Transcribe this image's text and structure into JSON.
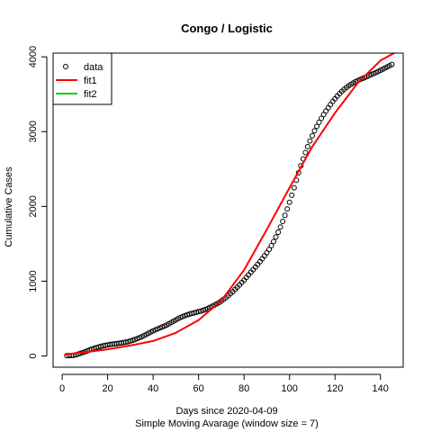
{
  "chart_data": {
    "type": "scatter",
    "title": "Congo / Logistic",
    "xlabel": "Days since 2020-04-09",
    "subtitle": "Simple Moving Avarage (window size = 7)",
    "ylabel": "Cumulative Cases",
    "xlim": [
      -4,
      150
    ],
    "ylim": [
      -150,
      4050
    ],
    "xticks": [
      0,
      20,
      40,
      60,
      80,
      100,
      120,
      140
    ],
    "yticks": [
      0,
      1000,
      2000,
      3000,
      4000
    ],
    "grid": false,
    "legend_position": "top-left",
    "legend": [
      {
        "name": "data",
        "marker": "open-circle",
        "color": "#000000"
      },
      {
        "name": "fit1",
        "marker": "line",
        "color": "#ff0000"
      },
      {
        "name": "fit2",
        "marker": "line",
        "color": "#00cd00"
      }
    ],
    "data_series": {
      "name": "data",
      "points": [
        [
          2,
          5
        ],
        [
          3,
          5
        ],
        [
          4,
          6
        ],
        [
          5,
          8
        ],
        [
          6,
          15
        ],
        [
          7,
          25
        ],
        [
          8,
          35
        ],
        [
          9,
          45
        ],
        [
          10,
          55
        ],
        [
          11,
          68
        ],
        [
          12,
          80
        ],
        [
          13,
          92
        ],
        [
          14,
          102
        ],
        [
          15,
          112
        ],
        [
          16,
          120
        ],
        [
          17,
          128
        ],
        [
          18,
          135
        ],
        [
          19,
          142
        ],
        [
          20,
          148
        ],
        [
          21,
          153
        ],
        [
          22,
          158
        ],
        [
          23,
          162
        ],
        [
          24,
          166
        ],
        [
          25,
          170
        ],
        [
          26,
          175
        ],
        [
          27,
          180
        ],
        [
          28,
          186
        ],
        [
          29,
          192
        ],
        [
          30,
          200
        ],
        [
          31,
          210
        ],
        [
          32,
          220
        ],
        [
          33,
          232
        ],
        [
          34,
          245
        ],
        [
          35,
          258
        ],
        [
          36,
          272
        ],
        [
          37,
          288
        ],
        [
          38,
          305
        ],
        [
          39,
          320
        ],
        [
          40,
          335
        ],
        [
          41,
          350
        ],
        [
          42,
          362
        ],
        [
          43,
          375
        ],
        [
          44,
          388
        ],
        [
          45,
          400
        ],
        [
          46,
          415
        ],
        [
          47,
          430
        ],
        [
          48,
          448
        ],
        [
          49,
          465
        ],
        [
          50,
          482
        ],
        [
          51,
          500
        ],
        [
          52,
          515
        ],
        [
          53,
          528
        ],
        [
          54,
          540
        ],
        [
          55,
          550
        ],
        [
          56,
          560
        ],
        [
          57,
          568
        ],
        [
          58,
          576
        ],
        [
          59,
          584
        ],
        [
          60,
          592
        ],
        [
          61,
          600
        ],
        [
          62,
          610
        ],
        [
          63,
          622
        ],
        [
          64,
          636
        ],
        [
          65,
          650
        ],
        [
          66,
          665
        ],
        [
          67,
          680
        ],
        [
          68,
          697
        ],
        [
          69,
          715
        ],
        [
          70,
          735
        ],
        [
          71,
          757
        ],
        [
          72,
          780
        ],
        [
          73,
          805
        ],
        [
          74,
          832
        ],
        [
          75,
          860
        ],
        [
          76,
          890
        ],
        [
          77,
          920
        ],
        [
          78,
          950
        ],
        [
          79,
          982
        ],
        [
          80,
          1015
        ],
        [
          81,
          1050
        ],
        [
          82,
          1085
        ],
        [
          83,
          1120
        ],
        [
          84,
          1155
        ],
        [
          85,
          1190
        ],
        [
          86,
          1225
        ],
        [
          87,
          1262
        ],
        [
          88,
          1300
        ],
        [
          89,
          1340
        ],
        [
          90,
          1380
        ],
        [
          91,
          1425
        ],
        [
          92,
          1475
        ],
        [
          93,
          1530
        ],
        [
          94,
          1590
        ],
        [
          95,
          1655
        ],
        [
          96,
          1725
        ],
        [
          97,
          1800
        ],
        [
          98,
          1880
        ],
        [
          99,
          1965
        ],
        [
          100,
          2055
        ],
        [
          101,
          2150
        ],
        [
          102,
          2250
        ],
        [
          103,
          2350
        ],
        [
          104,
          2450
        ],
        [
          105,
          2545
        ],
        [
          106,
          2635
        ],
        [
          107,
          2720
        ],
        [
          108,
          2800
        ],
        [
          109,
          2875
        ],
        [
          110,
          2945
        ],
        [
          111,
          3010
        ],
        [
          112,
          3070
        ],
        [
          113,
          3125
        ],
        [
          114,
          3178
        ],
        [
          115,
          3228
        ],
        [
          116,
          3275
        ],
        [
          117,
          3320
        ],
        [
          118,
          3362
        ],
        [
          119,
          3402
        ],
        [
          120,
          3440
        ],
        [
          121,
          3476
        ],
        [
          122,
          3508
        ],
        [
          123,
          3538
        ],
        [
          124,
          3565
        ],
        [
          125,
          3590
        ],
        [
          126,
          3612
        ],
        [
          127,
          3632
        ],
        [
          128,
          3650
        ],
        [
          129,
          3667
        ],
        [
          130,
          3682
        ],
        [
          131,
          3696
        ],
        [
          132,
          3710
        ],
        [
          133,
          3723
        ],
        [
          134,
          3736
        ],
        [
          135,
          3750
        ],
        [
          136,
          3763
        ],
        [
          137,
          3776
        ],
        [
          138,
          3790
        ],
        [
          139,
          3805
        ],
        [
          140,
          3820
        ],
        [
          141,
          3835
        ],
        [
          142,
          3850
        ],
        [
          143,
          3866
        ],
        [
          144,
          3882
        ],
        [
          145,
          3898
        ]
      ]
    },
    "fit1_series": {
      "name": "fit1",
      "points": [
        [
          1,
          20
        ],
        [
          10,
          50
        ],
        [
          20,
          90
        ],
        [
          30,
          140
        ],
        [
          40,
          200
        ],
        [
          50,
          310
        ],
        [
          60,
          480
        ],
        [
          70,
          740
        ],
        [
          80,
          1150
        ],
        [
          90,
          1690
        ],
        [
          100,
          2250
        ],
        [
          110,
          2800
        ],
        [
          120,
          3250
        ],
        [
          130,
          3650
        ],
        [
          140,
          3950
        ],
        [
          146,
          4080
        ]
      ]
    }
  }
}
